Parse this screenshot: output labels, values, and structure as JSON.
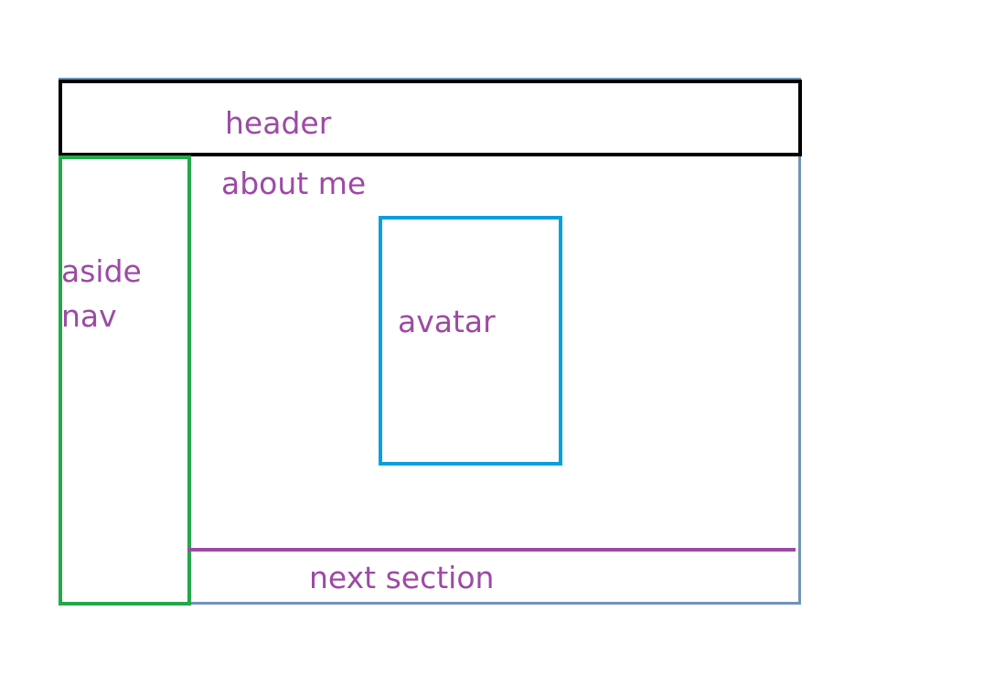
{
  "labels": {
    "header": "header",
    "about": "about me",
    "aside_line1": "aside",
    "aside_line2": "nav",
    "avatar": "avatar",
    "next_section": "next section"
  },
  "colors": {
    "label": "#9d4aa5",
    "header_border": "#000000",
    "aside_border": "#23a84a",
    "avatar_border": "#08a0dc",
    "frame_border": "#6f93bb",
    "divider": "#9d4aa5"
  }
}
